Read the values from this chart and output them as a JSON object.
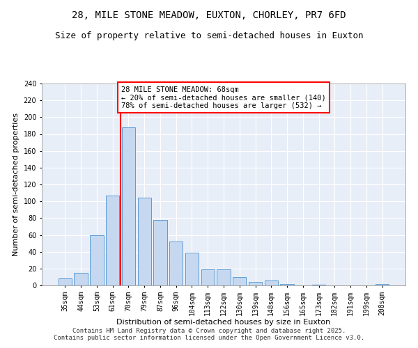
{
  "title": "28, MILE STONE MEADOW, EUXTON, CHORLEY, PR7 6FD",
  "subtitle": "Size of property relative to semi-detached houses in Euxton",
  "xlabel": "Distribution of semi-detached houses by size in Euxton",
  "ylabel": "Number of semi-detached properties",
  "categories": [
    "35sqm",
    "44sqm",
    "53sqm",
    "61sqm",
    "70sqm",
    "79sqm",
    "87sqm",
    "96sqm",
    "104sqm",
    "113sqm",
    "122sqm",
    "130sqm",
    "139sqm",
    "148sqm",
    "156sqm",
    "165sqm",
    "173sqm",
    "182sqm",
    "191sqm",
    "199sqm",
    "208sqm"
  ],
  "values": [
    8,
    15,
    60,
    107,
    188,
    104,
    78,
    52,
    39,
    19,
    19,
    10,
    4,
    6,
    2,
    0,
    1,
    0,
    0,
    0,
    2
  ],
  "bar_color": "#c5d8f0",
  "bar_edge_color": "#5b9bd5",
  "highlight_line_index": 4,
  "highlight_line_color": "red",
  "annotation_text": "28 MILE STONE MEADOW: 68sqm\n← 20% of semi-detached houses are smaller (140)\n78% of semi-detached houses are larger (532) →",
  "annotation_box_color": "white",
  "annotation_box_edge_color": "red",
  "ylim": [
    0,
    240
  ],
  "yticks": [
    0,
    20,
    40,
    60,
    80,
    100,
    120,
    140,
    160,
    180,
    200,
    220,
    240
  ],
  "footer_text": "Contains HM Land Registry data © Crown copyright and database right 2025.\nContains public sector information licensed under the Open Government Licence v3.0.",
  "background_color": "#e8eef8",
  "grid_color": "white",
  "title_fontsize": 10,
  "subtitle_fontsize": 9,
  "axis_label_fontsize": 8,
  "tick_fontsize": 7,
  "annotation_fontsize": 7.5,
  "footer_fontsize": 6.5
}
